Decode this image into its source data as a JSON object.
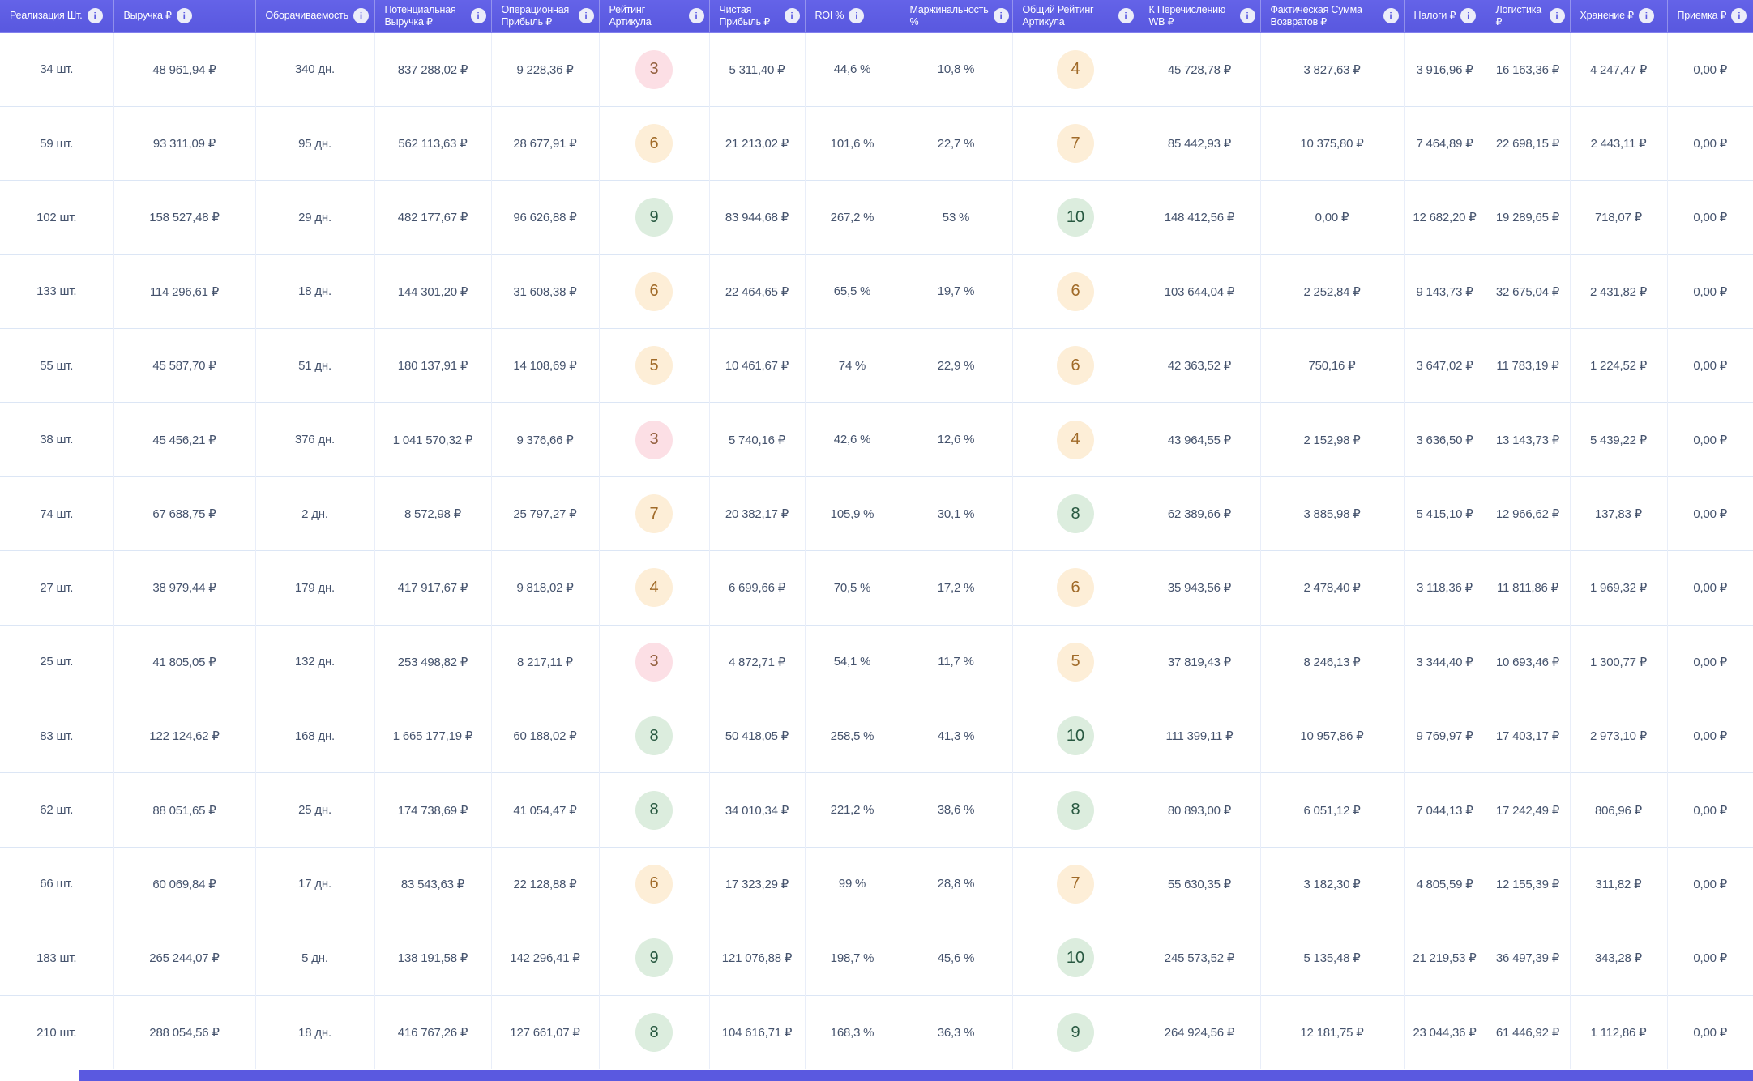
{
  "colors": {
    "header_bg": "#5a59e0",
    "header_bg_light": "#6463e8",
    "header_underline": "#8280ee",
    "cell_text": "#45536d",
    "v_border": "#e9eef9",
    "h_border": "#dce6f5",
    "badge_low_bg": "#fcdfe5",
    "badge_low_text": "#925f3d",
    "badge_mid_bg": "#fdeed7",
    "badge_mid_text": "#a06a28",
    "badge_high_bg": "#dcedde",
    "badge_high_text": "#26573f",
    "info_icon_bg": "#ecedf9",
    "info_icon_text": "#5d5ce2"
  },
  "table": {
    "info_icon": "i",
    "columns": [
      {
        "id": "realization-qty",
        "label": "Реализация Шт."
      },
      {
        "id": "revenue",
        "label": "Выручка ₽"
      },
      {
        "id": "turnover",
        "label": "Оборачиваемость"
      },
      {
        "id": "potential-revenue",
        "label": "Потенциальная Выручка ₽"
      },
      {
        "id": "operating-profit",
        "label": "Операционная Прибыль ₽"
      },
      {
        "id": "article-rating",
        "label": "Рейтинг Артикула"
      },
      {
        "id": "net-profit",
        "label": "Чистая Прибыль ₽"
      },
      {
        "id": "roi",
        "label": "ROI %"
      },
      {
        "id": "marginality",
        "label": "Маржинальность %"
      },
      {
        "id": "overall-article-rating",
        "label": "Общий Рейтинг Артикула"
      },
      {
        "id": "to-transfer-wb",
        "label": "К Перечислению WB ₽"
      },
      {
        "id": "actual-returns-sum",
        "label": "Фактическая Сумма Возвратов ₽"
      },
      {
        "id": "taxes",
        "label": "Налоги ₽"
      },
      {
        "id": "logistics",
        "label": "Логистика ₽"
      },
      {
        "id": "storage",
        "label": "Хранение ₽"
      },
      {
        "id": "acceptance",
        "label": "Приемка ₽"
      }
    ],
    "rows": [
      {
        "cells": [
          "34 шт.",
          "48 961,94 ₽",
          "340 дн.",
          "837 288,02 ₽",
          "9 228,36 ₽",
          {
            "badge": "3",
            "tier": "low"
          },
          "5 311,40 ₽",
          "44,6 %",
          "10,8 %",
          {
            "badge": "4",
            "tier": "mid"
          },
          "45 728,78 ₽",
          "3 827,63 ₽",
          "3 916,96 ₽",
          "16 163,36 ₽",
          "4 247,47 ₽",
          "0,00 ₽"
        ]
      },
      {
        "cells": [
          "59 шт.",
          "93 311,09 ₽",
          "95 дн.",
          "562 113,63 ₽",
          "28 677,91 ₽",
          {
            "badge": "6",
            "tier": "mid"
          },
          "21 213,02 ₽",
          "101,6 %",
          "22,7 %",
          {
            "badge": "7",
            "tier": "mid"
          },
          "85 442,93 ₽",
          "10 375,80 ₽",
          "7 464,89 ₽",
          "22 698,15 ₽",
          "2 443,11 ₽",
          "0,00 ₽"
        ]
      },
      {
        "cells": [
          "102 шт.",
          "158 527,48 ₽",
          "29 дн.",
          "482 177,67 ₽",
          "96 626,88 ₽",
          {
            "badge": "9",
            "tier": "high"
          },
          "83 944,68 ₽",
          "267,2 %",
          "53 %",
          {
            "badge": "10",
            "tier": "high"
          },
          "148 412,56 ₽",
          "0,00 ₽",
          "12 682,20 ₽",
          "19 289,65 ₽",
          "718,07 ₽",
          "0,00 ₽"
        ]
      },
      {
        "cells": [
          "133 шт.",
          "114 296,61 ₽",
          "18 дн.",
          "144 301,20 ₽",
          "31 608,38 ₽",
          {
            "badge": "6",
            "tier": "mid"
          },
          "22 464,65 ₽",
          "65,5 %",
          "19,7 %",
          {
            "badge": "6",
            "tier": "mid"
          },
          "103 644,04 ₽",
          "2 252,84 ₽",
          "9 143,73 ₽",
          "32 675,04 ₽",
          "2 431,82 ₽",
          "0,00 ₽"
        ]
      },
      {
        "cells": [
          "55 шт.",
          "45 587,70 ₽",
          "51 дн.",
          "180 137,91 ₽",
          "14 108,69 ₽",
          {
            "badge": "5",
            "tier": "mid"
          },
          "10 461,67 ₽",
          "74 %",
          "22,9 %",
          {
            "badge": "6",
            "tier": "mid"
          },
          "42 363,52 ₽",
          "750,16 ₽",
          "3 647,02 ₽",
          "11 783,19 ₽",
          "1 224,52 ₽",
          "0,00 ₽"
        ]
      },
      {
        "cells": [
          "38 шт.",
          "45 456,21 ₽",
          "376 дн.",
          "1 041 570,32 ₽",
          "9 376,66 ₽",
          {
            "badge": "3",
            "tier": "low"
          },
          "5 740,16 ₽",
          "42,6 %",
          "12,6 %",
          {
            "badge": "4",
            "tier": "mid"
          },
          "43 964,55 ₽",
          "2 152,98 ₽",
          "3 636,50 ₽",
          "13 143,73 ₽",
          "5 439,22 ₽",
          "0,00 ₽"
        ]
      },
      {
        "cells": [
          "74 шт.",
          "67 688,75 ₽",
          "2 дн.",
          "8 572,98 ₽",
          "25 797,27 ₽",
          {
            "badge": "7",
            "tier": "mid"
          },
          "20 382,17 ₽",
          "105,9 %",
          "30,1 %",
          {
            "badge": "8",
            "tier": "high"
          },
          "62 389,66 ₽",
          "3 885,98 ₽",
          "5 415,10 ₽",
          "12 966,62 ₽",
          "137,83 ₽",
          "0,00 ₽"
        ]
      },
      {
        "cells": [
          "27 шт.",
          "38 979,44 ₽",
          "179 дн.",
          "417 917,67 ₽",
          "9 818,02 ₽",
          {
            "badge": "4",
            "tier": "mid"
          },
          "6 699,66 ₽",
          "70,5 %",
          "17,2 %",
          {
            "badge": "6",
            "tier": "mid"
          },
          "35 943,56 ₽",
          "2 478,40 ₽",
          "3 118,36 ₽",
          "11 811,86 ₽",
          "1 969,32 ₽",
          "0,00 ₽"
        ]
      },
      {
        "cells": [
          "25 шт.",
          "41 805,05 ₽",
          "132 дн.",
          "253 498,82 ₽",
          "8 217,11 ₽",
          {
            "badge": "3",
            "tier": "low"
          },
          "4 872,71 ₽",
          "54,1 %",
          "11,7 %",
          {
            "badge": "5",
            "tier": "mid"
          },
          "37 819,43 ₽",
          "8 246,13 ₽",
          "3 344,40 ₽",
          "10 693,46 ₽",
          "1 300,77 ₽",
          "0,00 ₽"
        ]
      },
      {
        "cells": [
          "83 шт.",
          "122 124,62 ₽",
          "168 дн.",
          "1 665 177,19 ₽",
          "60 188,02 ₽",
          {
            "badge": "8",
            "tier": "high"
          },
          "50 418,05 ₽",
          "258,5 %",
          "41,3 %",
          {
            "badge": "10",
            "tier": "high"
          },
          "111 399,11 ₽",
          "10 957,86 ₽",
          "9 769,97 ₽",
          "17 403,17 ₽",
          "2 973,10 ₽",
          "0,00 ₽"
        ]
      },
      {
        "cells": [
          "62 шт.",
          "88 051,65 ₽",
          "25 дн.",
          "174 738,69 ₽",
          "41 054,47 ₽",
          {
            "badge": "8",
            "tier": "high"
          },
          "34 010,34 ₽",
          "221,2 %",
          "38,6 %",
          {
            "badge": "8",
            "tier": "high"
          },
          "80 893,00 ₽",
          "6 051,12 ₽",
          "7 044,13 ₽",
          "17 242,49 ₽",
          "806,96 ₽",
          "0,00 ₽"
        ]
      },
      {
        "cells": [
          "66 шт.",
          "60 069,84 ₽",
          "17 дн.",
          "83 543,63 ₽",
          "22 128,88 ₽",
          {
            "badge": "6",
            "tier": "mid"
          },
          "17 323,29 ₽",
          "99 %",
          "28,8 %",
          {
            "badge": "7",
            "tier": "mid"
          },
          "55 630,35 ₽",
          "3 182,30 ₽",
          "4 805,59 ₽",
          "12 155,39 ₽",
          "311,82 ₽",
          "0,00 ₽"
        ]
      },
      {
        "cells": [
          "183 шт.",
          "265 244,07 ₽",
          "5 дн.",
          "138 191,58 ₽",
          "142 296,41 ₽",
          {
            "badge": "9",
            "tier": "high"
          },
          "121 076,88 ₽",
          "198,7 %",
          "45,6 %",
          {
            "badge": "10",
            "tier": "high"
          },
          "245 573,52 ₽",
          "5 135,48 ₽",
          "21 219,53 ₽",
          "36 497,39 ₽",
          "343,28 ₽",
          "0,00 ₽"
        ]
      },
      {
        "cells": [
          "210 шт.",
          "288 054,56 ₽",
          "18 дн.",
          "416 767,26 ₽",
          "127 661,07 ₽",
          {
            "badge": "8",
            "tier": "high"
          },
          "104 616,71 ₽",
          "168,3 %",
          "36,3 %",
          {
            "badge": "9",
            "tier": "high"
          },
          "264 924,56 ₽",
          "12 181,75 ₽",
          "23 044,36 ₽",
          "61 446,92 ₽",
          "1 112,86 ₽",
          "0,00 ₽"
        ]
      }
    ]
  }
}
